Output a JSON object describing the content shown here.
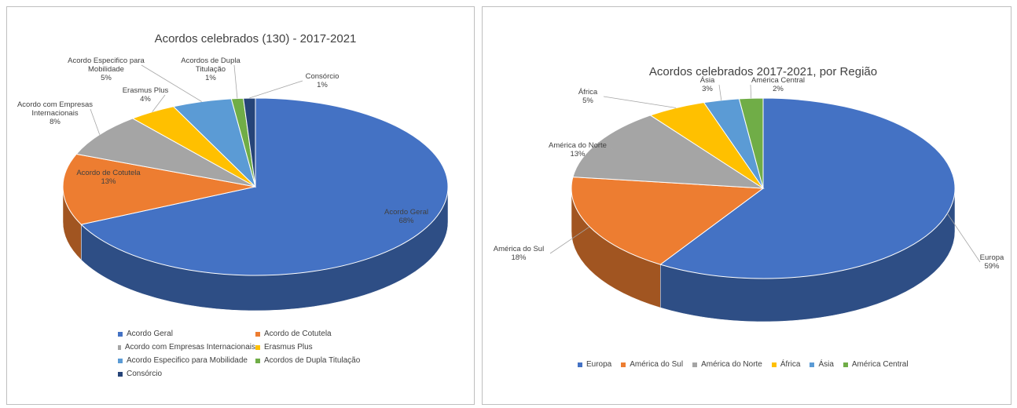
{
  "chart_data": [
    {
      "type": "pie3d",
      "title": "Acordos celebrados (130) -  2017-2021",
      "categories": [
        "Acordo Geral",
        "Acordo de Cotutela",
        "Acordo com Empresas Internacionais",
        "Erasmus Plus",
        "Acordo Especifico para Mobilidade",
        "Acordos de Dupla Titulação",
        "Consórcio"
      ],
      "values": [
        68,
        13,
        8,
        4,
        5,
        1,
        1
      ],
      "value_labels": [
        "68%",
        "13%",
        "8%",
        "4%",
        "5%",
        "1%",
        "1%"
      ],
      "colors": [
        "#4472c4",
        "#ed7d31",
        "#a5a5a5",
        "#ffc000",
        "#5b9bd5",
        "#70ad47",
        "#264478"
      ],
      "legend": "bottom"
    },
    {
      "type": "pie3d",
      "title": "Acordos celebrados 2017-2021, por Região",
      "categories": [
        "Europa",
        "América do Sul",
        "América do Norte",
        "África",
        "Ásia",
        "América Central"
      ],
      "values": [
        59,
        18,
        13,
        5,
        3,
        2
      ],
      "value_labels": [
        "59%",
        "18%",
        "13%",
        "5%",
        "3%",
        "2%"
      ],
      "colors": [
        "#4472c4",
        "#ed7d31",
        "#a5a5a5",
        "#ffc000",
        "#5b9bd5",
        "#70ad47"
      ],
      "legend": "bottom"
    }
  ]
}
